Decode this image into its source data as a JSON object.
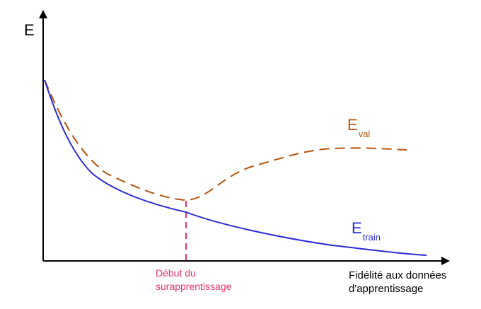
{
  "axes": {
    "y_label": "E",
    "x_label_line1": "Fidélité aux données",
    "x_label_line2": "d'apprentissage"
  },
  "curves": {
    "validation": {
      "main": "E",
      "sub": "val",
      "color": "#b5520e",
      "style": "dashed"
    },
    "training": {
      "main": "E",
      "sub": "train",
      "color": "#2a2ad6",
      "style": "solid"
    }
  },
  "overfitting_onset": {
    "line1": "Début du",
    "line2": "surapprentissage",
    "color": "#e8306a"
  }
}
